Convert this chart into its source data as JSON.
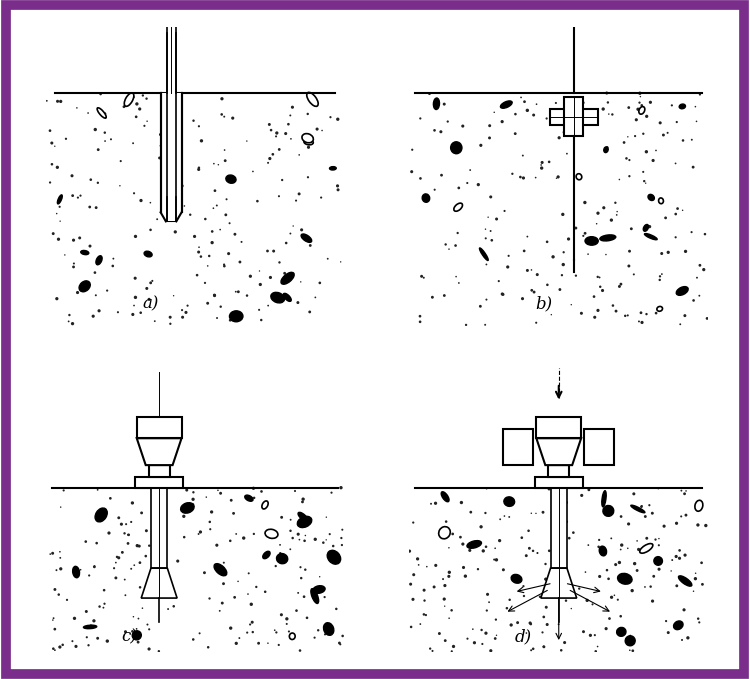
{
  "bg_color": "#ffffff",
  "border_color": "#7B2D8B",
  "border_width": 7,
  "fig_width": 7.5,
  "fig_height": 6.79,
  "labels": [
    "a)",
    "b)",
    "c)",
    "d)"
  ],
  "label_fontsize": 12,
  "line_color": "#000000",
  "panel_bg": "#f0ede8",
  "dot_color": "#000000",
  "dpi": 100
}
